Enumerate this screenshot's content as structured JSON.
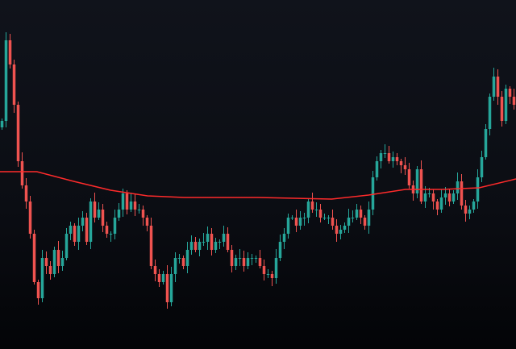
{
  "chart_data": {
    "type": "candlestick",
    "title": "",
    "xlabel": "",
    "ylabel": "",
    "grid": false,
    "ylim": [
      0,
      433
    ],
    "colors": {
      "up": "#26a69a",
      "down": "#ef5350",
      "moving_average": "#ff2b2b",
      "background_top": "#10131b",
      "background_bottom": "#030407"
    },
    "closes": [
      283,
      383,
      353,
      303,
      233,
      203,
      183,
      143,
      83,
      63,
      113,
      103,
      93,
      123,
      103,
      113,
      143,
      153,
      133,
      153,
      163,
      133,
      183,
      163,
      173,
      153,
      143,
      143,
      163,
      173,
      193,
      173,
      183,
      173,
      173,
      163,
      153,
      103,
      93,
      83,
      93,
      58,
      93,
      113,
      113,
      103,
      123,
      133,
      123,
      133,
      133,
      143,
      123,
      133,
      133,
      143,
      123,
      103,
      113,
      113,
      103,
      113,
      113,
      113,
      103,
      93,
      93,
      88,
      113,
      133,
      143,
      163,
      163,
      153,
      163,
      163,
      183,
      173,
      173,
      163,
      163,
      163,
      153,
      143,
      148,
      153,
      163,
      163,
      173,
      163,
      153,
      173,
      213,
      233,
      243,
      243,
      233,
      238,
      233,
      228,
      223,
      203,
      193,
      223,
      183,
      193,
      193,
      183,
      173,
      188,
      193,
      183,
      193,
      208,
      178,
      168,
      173,
      183,
      213,
      238,
      273,
      313,
      338,
      313,
      283,
      323,
      313,
      303
    ],
    "moving_average": [
      220,
      220,
      208,
      197,
      190,
      188,
      188,
      188,
      187,
      186,
      191,
      198,
      198,
      200,
      211
    ]
  }
}
